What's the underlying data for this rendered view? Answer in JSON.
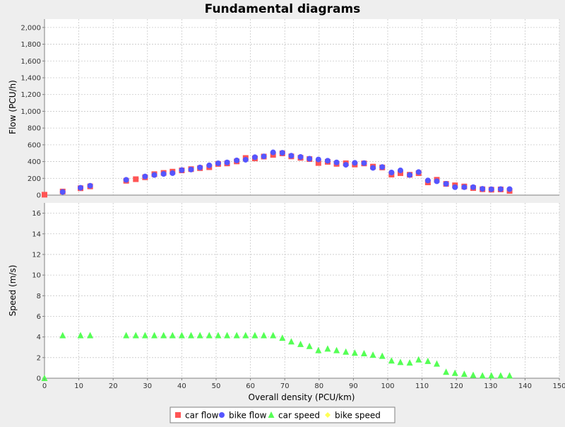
{
  "chart_data": {
    "type": "scatter",
    "title": "Fundamental diagrams",
    "xlabel": "Overall density (PCU/km)",
    "xlim": [
      0,
      150
    ],
    "x_ticks": [
      0,
      10,
      20,
      30,
      40,
      50,
      60,
      70,
      80,
      90,
      100,
      110,
      120,
      130,
      140,
      150
    ],
    "grid": true,
    "legend_position": "bottom-center",
    "subplots": [
      {
        "ylabel": "Flow (PCU/h)",
        "ylim": [
          0,
          2100
        ],
        "y_ticks": [
          0,
          200,
          400,
          600,
          800,
          1000,
          1200,
          1400,
          1600,
          1800,
          2000
        ],
        "y_tick_labels": [
          "0",
          "200",
          "400",
          "600",
          "800",
          "1,000",
          "1,200",
          "1,400",
          "1,600",
          "1,800",
          "2,000"
        ],
        "series": [
          {
            "name": "car flow",
            "marker": "square",
            "color": "#ff5555",
            "points": [
              [
                0,
                5
              ],
              [
                5.3,
                43
              ],
              [
                10.5,
                82
              ],
              [
                13.3,
                104
              ],
              [
                23.8,
                171
              ],
              [
                26.6,
                190
              ],
              [
                29.3,
                213
              ],
              [
                32.0,
                250
              ],
              [
                34.7,
                265
              ],
              [
                37.3,
                280
              ],
              [
                40.0,
                295
              ],
              [
                42.7,
                310
              ],
              [
                45.3,
                322
              ],
              [
                48.0,
                333
              ],
              [
                50.6,
                372
              ],
              [
                53.2,
                378
              ],
              [
                56.0,
                402
              ],
              [
                58.6,
                443
              ],
              [
                61.3,
                438
              ],
              [
                63.9,
                460
              ],
              [
                66.6,
                480
              ],
              [
                69.3,
                498
              ],
              [
                71.9,
                462
              ],
              [
                74.6,
                445
              ],
              [
                77.2,
                430
              ],
              [
                79.8,
                383
              ],
              [
                82.5,
                397
              ],
              [
                85.1,
                373
              ],
              [
                87.8,
                380
              ],
              [
                90.4,
                365
              ],
              [
                93.1,
                378
              ],
              [
                95.7,
                340
              ],
              [
                98.4,
                330
              ],
              [
                101.1,
                245
              ],
              [
                103.7,
                262
              ],
              [
                106.4,
                243
              ],
              [
                109.0,
                262
              ],
              [
                111.7,
                152
              ],
              [
                114.3,
                183
              ],
              [
                117.0,
                134
              ],
              [
                119.6,
                117
              ],
              [
                122.3,
                103
              ],
              [
                124.9,
                84
              ],
              [
                127.6,
                70
              ],
              [
                130.2,
                65
              ],
              [
                132.9,
                68
              ],
              [
                135.5,
                50
              ]
            ]
          },
          {
            "name": "bike flow",
            "marker": "circle",
            "color": "#5555ff",
            "points": [
              [
                5.3,
                38
              ],
              [
                10.5,
                88
              ],
              [
                13.3,
                112
              ],
              [
                23.8,
                182
              ],
              [
                29.3,
                222
              ],
              [
                32.0,
                240
              ],
              [
                34.7,
                253
              ],
              [
                37.3,
                262
              ],
              [
                40.0,
                298
              ],
              [
                42.7,
                305
              ],
              [
                45.3,
                330
              ],
              [
                48.0,
                355
              ],
              [
                50.6,
                380
              ],
              [
                53.2,
                390
              ],
              [
                56.0,
                414
              ],
              [
                58.6,
                422
              ],
              [
                61.3,
                452
              ],
              [
                63.9,
                462
              ],
              [
                66.6,
                510
              ],
              [
                69.3,
                505
              ],
              [
                71.9,
                470
              ],
              [
                74.6,
                455
              ],
              [
                77.2,
                434
              ],
              [
                79.8,
                425
              ],
              [
                82.5,
                410
              ],
              [
                85.1,
                390
              ],
              [
                87.8,
                362
              ],
              [
                90.4,
                385
              ],
              [
                93.1,
                382
              ],
              [
                95.7,
                325
              ],
              [
                98.4,
                335
              ],
              [
                101.1,
                270
              ],
              [
                103.7,
                295
              ],
              [
                106.4,
                240
              ],
              [
                109.0,
                275
              ],
              [
                111.7,
                175
              ],
              [
                114.3,
                165
              ],
              [
                117.0,
                135
              ],
              [
                119.6,
                95
              ],
              [
                122.3,
                95
              ],
              [
                124.9,
                95
              ],
              [
                127.6,
                75
              ],
              [
                130.2,
                70
              ],
              [
                132.9,
                72
              ],
              [
                135.5,
                72
              ]
            ]
          },
          {
            "name": "bike speed",
            "marker": "diamond",
            "color": "#ffff55",
            "points": []
          }
        ]
      },
      {
        "ylabel": "Speed (m/s)",
        "ylim": [
          0,
          17
        ],
        "y_ticks": [
          0,
          2,
          4,
          6,
          8,
          10,
          12,
          14,
          16
        ],
        "y_tick_labels": [
          "0",
          "2",
          "4",
          "6",
          "8",
          "10",
          "12",
          "14",
          "16"
        ],
        "series": [
          {
            "name": "car speed",
            "marker": "triangle",
            "color": "#55ff55",
            "points": [
              [
                0,
                0
              ],
              [
                5.3,
                4.15
              ],
              [
                10.5,
                4.15
              ],
              [
                13.3,
                4.15
              ],
              [
                23.8,
                4.15
              ],
              [
                26.6,
                4.15
              ],
              [
                29.3,
                4.15
              ],
              [
                32.0,
                4.15
              ],
              [
                34.7,
                4.15
              ],
              [
                37.3,
                4.15
              ],
              [
                40.0,
                4.15
              ],
              [
                42.7,
                4.15
              ],
              [
                45.3,
                4.15
              ],
              [
                48.0,
                4.15
              ],
              [
                50.6,
                4.15
              ],
              [
                53.2,
                4.15
              ],
              [
                56.0,
                4.15
              ],
              [
                58.6,
                4.15
              ],
              [
                61.3,
                4.15
              ],
              [
                63.9,
                4.15
              ],
              [
                66.6,
                4.15
              ],
              [
                69.3,
                3.9
              ],
              [
                71.9,
                3.55
              ],
              [
                74.6,
                3.3
              ],
              [
                77.2,
                3.1
              ],
              [
                79.8,
                2.7
              ],
              [
                82.5,
                2.85
              ],
              [
                85.1,
                2.7
              ],
              [
                87.8,
                2.55
              ],
              [
                90.4,
                2.45
              ],
              [
                93.1,
                2.4
              ],
              [
                95.7,
                2.25
              ],
              [
                98.4,
                2.15
              ],
              [
                101.1,
                1.7
              ],
              [
                103.7,
                1.55
              ],
              [
                106.4,
                1.5
              ],
              [
                109.0,
                1.8
              ],
              [
                111.7,
                1.65
              ],
              [
                114.3,
                1.4
              ],
              [
                117.0,
                0.6
              ],
              [
                119.6,
                0.5
              ],
              [
                122.3,
                0.4
              ],
              [
                124.9,
                0.3
              ],
              [
                127.6,
                0.25
              ],
              [
                130.2,
                0.25
              ],
              [
                132.9,
                0.25
              ],
              [
                135.5,
                0.25
              ]
            ]
          }
        ]
      }
    ],
    "legend": [
      {
        "name": "car flow",
        "marker": "square",
        "color": "#ff5555"
      },
      {
        "name": "bike flow",
        "marker": "circle",
        "color": "#5555ff"
      },
      {
        "name": "car speed",
        "marker": "triangle",
        "color": "#55ff55"
      },
      {
        "name": "bike speed",
        "marker": "diamond",
        "color": "#ffff55"
      }
    ]
  },
  "colors": {
    "background": "#eeeeee",
    "plot_background": "#ffffff",
    "gridline": "#c8c8c8",
    "axis": "#808080",
    "text": "#000000"
  }
}
